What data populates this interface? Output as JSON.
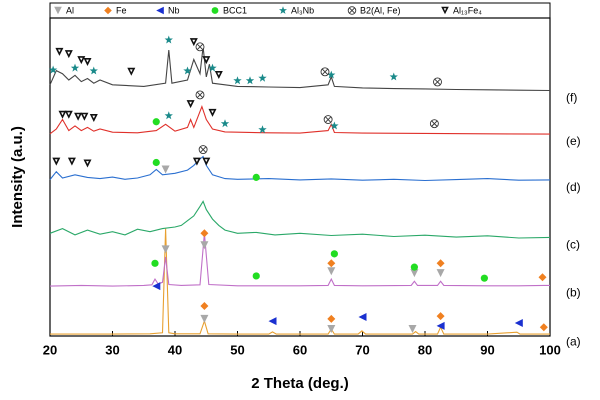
{
  "chart_data": {
    "type": "line",
    "x_label": "2 Theta (deg.)",
    "y_label": "Intensity (a.u.)",
    "xlim": [
      20,
      100
    ],
    "xticks": [
      20,
      30,
      40,
      50,
      60,
      70,
      80,
      90,
      100
    ],
    "ylim": [
      0,
      100
    ],
    "series": [
      {
        "name": "(a)",
        "color": "#e8a030",
        "x": [
          20,
          30,
          36,
          38,
          38.5,
          39,
          40,
          44,
          44.7,
          45.3,
          50,
          55,
          55.6,
          56.2,
          60,
          64.5,
          65,
          65.5,
          69.3,
          69.9,
          70.5,
          75,
          78,
          78.5,
          79,
          82,
          82.5,
          83,
          90,
          94.7,
          95.2,
          100
        ],
        "values": [
          0.6,
          0.6,
          0.7,
          1,
          34,
          1,
          0.7,
          0.7,
          4.7,
          0.7,
          0.6,
          0.6,
          1.3,
          0.6,
          0.6,
          0.6,
          2.2,
          0.6,
          0.6,
          1.6,
          0.6,
          0.6,
          0.6,
          1.4,
          0.6,
          0.6,
          2.8,
          0.6,
          0.6,
          1.2,
          0.6,
          0.6
        ]
      },
      {
        "name": "(b)",
        "color": "#c070c8",
        "x": [
          20,
          25,
          30,
          35,
          36.3,
          36.8,
          37.3,
          38,
          38.5,
          39,
          41,
          44,
          44.7,
          45.4,
          50,
          55,
          60,
          64.5,
          65,
          65.5,
          70,
          77.8,
          78.3,
          78.8,
          82,
          82.5,
          83,
          90,
          95,
          99,
          100
        ],
        "values": [
          15.8,
          16,
          15.8,
          16,
          16.2,
          18,
          16.5,
          17,
          25,
          16.3,
          16,
          16.2,
          32.5,
          16.3,
          15.9,
          15.9,
          15.9,
          16,
          18,
          16,
          15.9,
          16,
          17.3,
          16,
          16,
          17.3,
          16,
          15.9,
          15.9,
          16,
          16
        ]
      },
      {
        "name": "(c)",
        "color": "#2aa868",
        "x": [
          20,
          22,
          24,
          26,
          28,
          30,
          32,
          34,
          36,
          38,
          40,
          41,
          42,
          43,
          44,
          44.5,
          45,
          46,
          47,
          48,
          50,
          53,
          56,
          60,
          65,
          70,
          75,
          80,
          85,
          90,
          95,
          100
        ],
        "values": [
          32.5,
          34,
          32,
          33.5,
          32.2,
          33,
          32,
          33.8,
          33,
          34,
          34.5,
          35,
          36.5,
          38,
          41,
          42.6,
          40,
          37,
          35,
          33.5,
          32.5,
          32.8,
          32,
          32.5,
          31.8,
          32.2,
          31.5,
          31.9,
          31.3,
          31.7,
          31,
          31.2
        ]
      },
      {
        "name": "(d)",
        "color": "#2a6fd0",
        "x": [
          20,
          21,
          22,
          24,
          26,
          28,
          30,
          32,
          34,
          36,
          37,
          38,
          40,
          42,
          43,
          44,
          44.5,
          45,
          46,
          48,
          50,
          55,
          60,
          65,
          70,
          75,
          80,
          85,
          90,
          95,
          100
        ],
        "values": [
          49.5,
          52,
          50,
          51,
          50.2,
          49.8,
          50.3,
          49.6,
          50,
          51,
          52.7,
          51,
          51.5,
          52.5,
          54,
          56,
          56.8,
          54,
          51,
          49.8,
          49.6,
          49.8,
          49.4,
          49.7,
          49.3,
          49.6,
          49.2,
          49.5,
          49.8,
          49.3,
          49.4
        ]
      },
      {
        "name": "(e)",
        "color": "#e0302a",
        "x": [
          20,
          21,
          22,
          23,
          24,
          25,
          26,
          27,
          28,
          30,
          34,
          37,
          38.5,
          40,
          42,
          42.5,
          43,
          44.3,
          45,
          46,
          48,
          50,
          55,
          60,
          64.5,
          65,
          65.5,
          70,
          80,
          90,
          100
        ],
        "values": [
          64,
          65.5,
          68.5,
          65,
          66.5,
          65,
          66,
          64.8,
          65.5,
          64.5,
          64.3,
          65,
          67,
          64.8,
          66,
          68.5,
          66,
          72.6,
          68.5,
          65.5,
          64.6,
          64.5,
          64.3,
          64.2,
          65,
          67,
          64.4,
          64.2,
          64.1,
          64,
          63.9
        ]
      },
      {
        "name": "(f)",
        "color": "#444444",
        "x": [
          20,
          21,
          22,
          23,
          24,
          25,
          26,
          27,
          28,
          30,
          35,
          38.5,
          39,
          39.5,
          42,
          43,
          44,
          44.5,
          45,
          45.5,
          46,
          48,
          50,
          55,
          60,
          64.5,
          65,
          65.5,
          70,
          75,
          80,
          85,
          90,
          95,
          100
        ],
        "values": [
          79.5,
          84,
          83,
          81,
          82.5,
          80.5,
          81.5,
          80,
          81,
          79.5,
          79,
          80,
          90.5,
          80,
          81,
          87.5,
          83,
          91.5,
          82,
          86,
          80,
          79.5,
          79,
          78.8,
          78.6,
          79.5,
          82,
          79,
          78.5,
          78.3,
          78.2,
          78,
          77.9,
          77.8,
          77.7
        ]
      }
    ],
    "phases": [
      {
        "name": "Al",
        "marker": "triangle-down",
        "color": "#a8a8a8",
        "marks": {
          "x": [
            44.7,
            65,
            78,
            38.5,
            44.7,
            65,
            78.3,
            82.5,
            38.5
          ],
          "y": [
            5.4,
            2.2,
            2.2,
            27.4,
            28.7,
            20.5,
            19.9,
            19.9,
            52.7
          ]
        }
      },
      {
        "name": "Fe",
        "marker": "diamond",
        "color": "#f08020",
        "marks": {
          "x": [
            44.7,
            65,
            82.5,
            99,
            44.7,
            65,
            82.5,
            98.8
          ],
          "y": [
            9.5,
            5.4,
            6.3,
            2.8,
            32.5,
            23,
            23,
            18.6
          ]
        }
      },
      {
        "name": "Nb",
        "marker": "triangle-left",
        "color": "#1a30d0",
        "marks": {
          "x": [
            37,
            55.6,
            70,
            82.5,
            95
          ],
          "y": [
            15.8,
            4.7,
            6,
            3.2,
            4.1
          ]
        }
      },
      {
        "name": "BCC1",
        "marker": "circle",
        "color": "#22dd22",
        "marks": {
          "x": [
            36.8,
            53,
            65.5,
            78.3,
            89.5,
            37,
            53,
            37
          ],
          "y": [
            23,
            19,
            26,
            21.8,
            18.3,
            54.9,
            50.2,
            67.8
          ]
        }
      },
      {
        "name": "Al₃Nb",
        "marker": "star",
        "color": "#1a8a8a",
        "marks": {
          "x": [
            39,
            48,
            54,
            65.5,
            20.5,
            24,
            27,
            39,
            42,
            46,
            50,
            52,
            54,
            65,
            75
          ],
          "y": [
            69.7,
            67.2,
            65.3,
            66.5,
            84.2,
            84.8,
            83.9,
            93.7,
            83.9,
            84.8,
            80.8,
            80.8,
            81.6,
            82.6,
            82
          ]
        }
      },
      {
        "name": "B2(Al, Fe)",
        "marker": "circle-x",
        "color": "#333333",
        "marks": {
          "x": [
            44.5,
            44,
            64.5,
            81.5,
            44,
            64,
            82
          ],
          "y": [
            59,
            76.3,
            68.5,
            67.2,
            91.5,
            83.6,
            80.4
          ]
        }
      },
      {
        "name": "Al₁₃Fe₄",
        "marker": "triangle-down-outline",
        "color": "#111111",
        "marks": {
          "x": [
            21,
            23.5,
            26,
            43.5,
            45,
            22,
            23,
            24.5,
            25.5,
            27,
            42.5,
            46,
            21.5,
            23,
            25,
            26,
            33,
            43,
            45,
            47
          ],
          "y": [
            55.2,
            55.2,
            54.6,
            55.2,
            55.2,
            70,
            70,
            69.4,
            69.4,
            69,
            73.4,
            70.6,
            89.9,
            89.2,
            87.3,
            86.7,
            83.6,
            93,
            87.3,
            82.6
          ]
        }
      }
    ]
  }
}
